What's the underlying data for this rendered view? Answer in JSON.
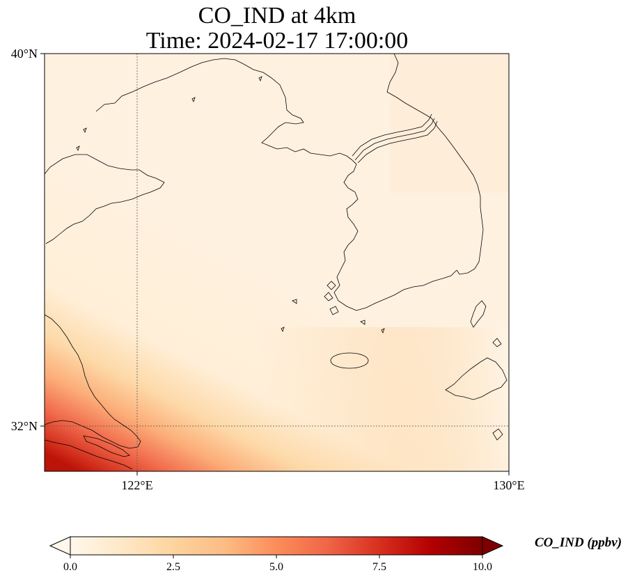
{
  "figure": {
    "title_line1": "CO_IND at 4km",
    "title_line2": "Time: 2024-02-17 17:00:00"
  },
  "map": {
    "lat_labels": [
      "40°N",
      "32°N"
    ],
    "lon_labels": [
      "122°E",
      "130°E"
    ],
    "extent": {
      "lon_min": 120,
      "lon_max": 130,
      "lat_min": 31,
      "lat_max": 40
    },
    "gridlines": {
      "lons": [
        122
      ],
      "lats": [
        32
      ],
      "style": "dotted"
    }
  },
  "colorbar": {
    "label": "CO_IND (ppbv)",
    "ticks": [
      "0.0",
      "2.5",
      "5.0",
      "7.5",
      "10.0"
    ],
    "min": 0,
    "max": 10,
    "extend": "both",
    "colormap": "OrRd",
    "colors": [
      "#fff7ec",
      "#fee8c8",
      "#fdd49e",
      "#fdbb84",
      "#fc8d59",
      "#ef6548",
      "#d7301f",
      "#b30000",
      "#7f0000"
    ]
  },
  "chart_data": {
    "type": "heatmap",
    "title": "CO_IND at 4km\nTime: 2024-02-17 17:00:00",
    "variable": "CO_IND",
    "units": "ppbv",
    "xlabel": "",
    "ylabel": "",
    "x_range": [
      120,
      130
    ],
    "y_range": [
      31,
      40
    ],
    "value_range": [
      0,
      10
    ],
    "pattern": [
      {
        "region": "north and central",
        "value": 0.5
      },
      {
        "region": "central south band",
        "value": 2.5
      },
      {
        "region": "southern band near 32°N",
        "value": 5.5
      },
      {
        "region": "southwest corner near 120°E 31°N",
        "value": 9
      }
    ]
  }
}
